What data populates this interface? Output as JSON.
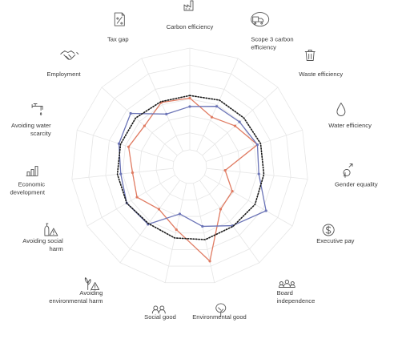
{
  "chart_data": {
    "type": "radar",
    "title": "",
    "axes": [
      {
        "label": [
          "Carbon efficiency"
        ],
        "icon": "factory-icon"
      },
      {
        "label": [
          "Scope 3 carbon",
          "efficiency"
        ],
        "icon": "truck-cloud-icon"
      },
      {
        "label": [
          "Waste efficiency"
        ],
        "icon": "trash-bin-icon"
      },
      {
        "label": [
          "Water efficiency"
        ],
        "icon": "water-drop-icon"
      },
      {
        "label": [
          "Gender equality"
        ],
        "icon": "gender-symbol-icon"
      },
      {
        "label": [
          "Executive pay"
        ],
        "icon": "dollar-coin-icon"
      },
      {
        "label": [
          "Board",
          "independence"
        ],
        "icon": "people-group-icon"
      },
      {
        "label": [
          "Environmental good"
        ],
        "icon": "tree-icon"
      },
      {
        "label": [
          "Social good"
        ],
        "icon": "people-pair-icon"
      },
      {
        "label": [
          "Avoiding",
          "environmental harm"
        ],
        "icon": "plant-warning-icon"
      },
      {
        "label": [
          "Avoiding social",
          "harm"
        ],
        "icon": "bottle-warning-icon"
      },
      {
        "label": [
          "Economic",
          "development"
        ],
        "icon": "bar-growth-icon"
      },
      {
        "label": [
          "Avoiding water",
          "scarcity"
        ],
        "icon": "water-tap-icon"
      },
      {
        "label": [
          "Employment"
        ],
        "icon": "handshake-icon"
      },
      {
        "label": [
          "Tax gap"
        ],
        "icon": "percent-doc-icon"
      }
    ],
    "rings": 7,
    "max": 7,
    "grid": true,
    "legend": "none",
    "series": [
      {
        "color": "#e07b62",
        "style": "solid",
        "values": [
          4.05,
          3.2,
          3.6,
          4.2,
          2.1,
          2.9,
          3.1,
          5.7,
          3.8,
          3.1,
          3.6,
          3.4,
          3.8,
          3.6,
          4.15
        ]
      },
      {
        "color": "#6b74b7",
        "style": "solid",
        "values": [
          3.55,
          3.9,
          3.95,
          4.2,
          4.1,
          5.2,
          4.3,
          3.6,
          2.85,
          4.2,
          4.3,
          4.1,
          4.4,
          4.7,
          3.4
        ]
      },
      {
        "color": "#1a1a1a",
        "style": "dotted",
        "values": [
          4.2,
          4.3,
          4.3,
          4.4,
          4.4,
          4.45,
          4.35,
          4.4,
          4.3,
          4.15,
          4.3,
          4.3,
          4.3,
          4.3,
          4.2
        ]
      }
    ]
  }
}
